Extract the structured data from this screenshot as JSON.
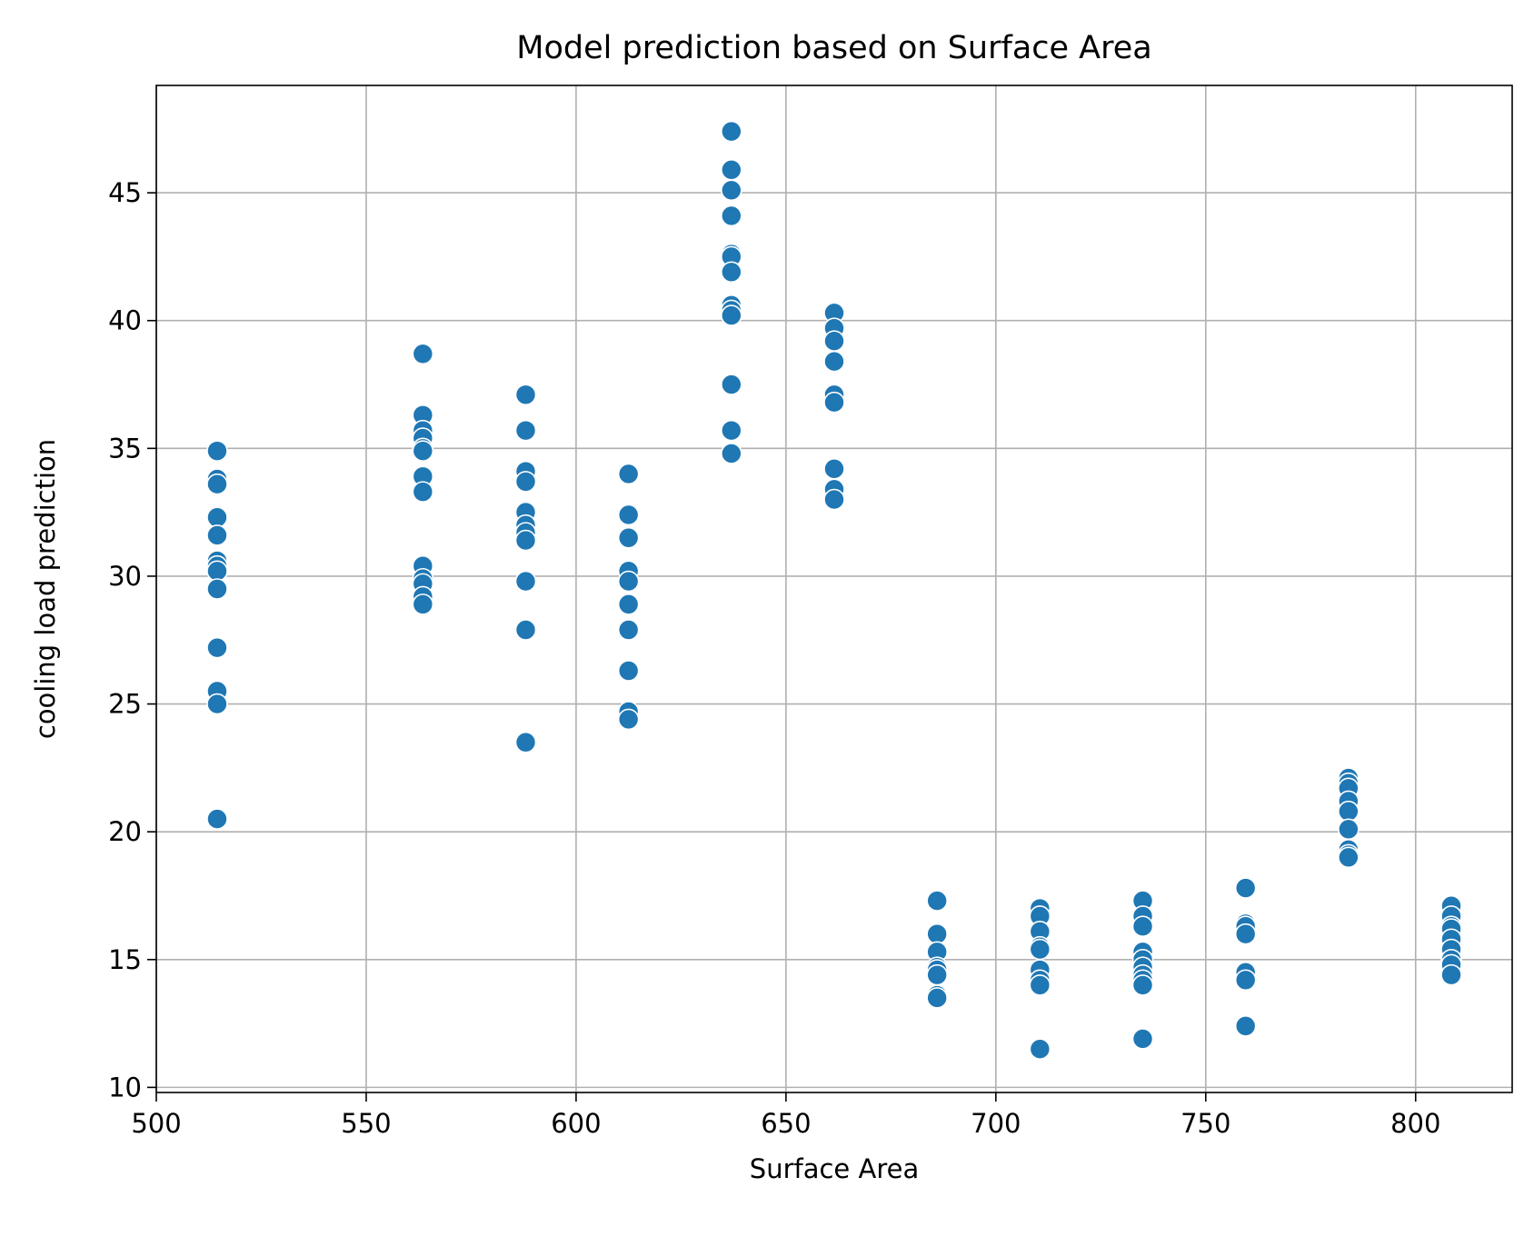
{
  "chart_data": {
    "type": "scatter",
    "title": "Model prediction based on Surface Area",
    "xlabel": "Surface Area",
    "ylabel": "cooling load prediction",
    "xlim": [
      500,
      823
    ],
    "ylim": [
      9.8,
      49.2
    ],
    "xticks": [
      500,
      550,
      600,
      650,
      700,
      750,
      800
    ],
    "yticks": [
      10,
      15,
      20,
      25,
      30,
      35,
      40,
      45
    ],
    "grid": true,
    "legend": "none",
    "marker_color": "#1f77b4",
    "marker_edge_color": "#ffffff",
    "series": [
      {
        "points": [
          [
            514.5,
            34.9
          ],
          [
            514.5,
            33.8
          ],
          [
            514.5,
            33.6
          ],
          [
            514.5,
            32.3
          ],
          [
            514.5,
            31.6
          ],
          [
            514.5,
            30.6
          ],
          [
            514.5,
            30.4
          ],
          [
            514.5,
            30.2
          ],
          [
            514.5,
            29.5
          ],
          [
            514.5,
            27.2
          ],
          [
            514.5,
            25.5
          ],
          [
            514.5,
            25.0
          ],
          [
            514.5,
            20.5
          ],
          [
            563.5,
            38.7
          ],
          [
            563.5,
            36.3
          ],
          [
            563.5,
            35.7
          ],
          [
            563.5,
            35.4
          ],
          [
            563.5,
            35.0
          ],
          [
            563.5,
            34.9
          ],
          [
            563.5,
            33.9
          ],
          [
            563.5,
            33.3
          ],
          [
            563.5,
            30.4
          ],
          [
            563.5,
            29.9
          ],
          [
            563.5,
            29.7
          ],
          [
            563.5,
            29.2
          ],
          [
            563.5,
            28.9
          ],
          [
            588.0,
            37.1
          ],
          [
            588.0,
            35.7
          ],
          [
            588.0,
            34.1
          ],
          [
            588.0,
            33.7
          ],
          [
            588.0,
            32.5
          ],
          [
            588.0,
            32.0
          ],
          [
            588.0,
            31.7
          ],
          [
            588.0,
            31.4
          ],
          [
            588.0,
            29.8
          ],
          [
            588.0,
            27.9
          ],
          [
            588.0,
            23.5
          ],
          [
            612.5,
            34.0
          ],
          [
            612.5,
            32.4
          ],
          [
            612.5,
            31.5
          ],
          [
            612.5,
            30.2
          ],
          [
            612.5,
            29.8
          ],
          [
            612.5,
            28.9
          ],
          [
            612.5,
            27.9
          ],
          [
            612.5,
            26.3
          ],
          [
            612.5,
            24.7
          ],
          [
            612.5,
            24.4
          ],
          [
            637.0,
            47.4
          ],
          [
            637.0,
            45.9
          ],
          [
            637.0,
            45.1
          ],
          [
            637.0,
            44.1
          ],
          [
            637.0,
            42.6
          ],
          [
            637.0,
            42.5
          ],
          [
            637.0,
            41.9
          ],
          [
            637.0,
            40.6
          ],
          [
            637.0,
            40.4
          ],
          [
            637.0,
            40.2
          ],
          [
            637.0,
            37.5
          ],
          [
            637.0,
            35.7
          ],
          [
            637.0,
            34.8
          ],
          [
            661.5,
            40.3
          ],
          [
            661.5,
            39.7
          ],
          [
            661.5,
            39.2
          ],
          [
            661.5,
            38.4
          ],
          [
            661.5,
            37.1
          ],
          [
            661.5,
            36.8
          ],
          [
            661.5,
            34.2
          ],
          [
            661.5,
            33.4
          ],
          [
            661.5,
            33.0
          ],
          [
            686.0,
            17.3
          ],
          [
            686.0,
            16.0
          ],
          [
            686.0,
            15.3
          ],
          [
            686.0,
            14.7
          ],
          [
            686.0,
            14.6
          ],
          [
            686.0,
            14.4
          ],
          [
            686.0,
            13.6
          ],
          [
            686.0,
            13.5
          ],
          [
            710.5,
            17.0
          ],
          [
            710.5,
            16.7
          ],
          [
            710.5,
            16.1
          ],
          [
            710.5,
            15.5
          ],
          [
            710.5,
            15.4
          ],
          [
            710.5,
            14.6
          ],
          [
            710.5,
            14.2
          ],
          [
            710.5,
            14.0
          ],
          [
            710.5,
            11.5
          ],
          [
            735.0,
            17.3
          ],
          [
            735.0,
            16.7
          ],
          [
            735.0,
            16.3
          ],
          [
            735.0,
            15.3
          ],
          [
            735.0,
            15.0
          ],
          [
            735.0,
            14.7
          ],
          [
            735.0,
            14.4
          ],
          [
            735.0,
            14.2
          ],
          [
            735.0,
            14.0
          ],
          [
            735.0,
            11.9
          ],
          [
            759.5,
            17.8
          ],
          [
            759.5,
            16.4
          ],
          [
            759.5,
            16.3
          ],
          [
            759.5,
            16.0
          ],
          [
            759.5,
            14.5
          ],
          [
            759.5,
            14.2
          ],
          [
            759.5,
            12.4
          ],
          [
            784.0,
            22.1
          ],
          [
            784.0,
            21.9
          ],
          [
            784.0,
            21.7
          ],
          [
            784.0,
            21.2
          ],
          [
            784.0,
            20.8
          ],
          [
            784.0,
            20.1
          ],
          [
            784.0,
            19.3
          ],
          [
            784.0,
            19.1
          ],
          [
            784.0,
            19.0
          ],
          [
            808.5,
            17.1
          ],
          [
            808.5,
            16.7
          ],
          [
            808.5,
            16.3
          ],
          [
            808.5,
            16.2
          ],
          [
            808.5,
            15.8
          ],
          [
            808.5,
            15.4
          ],
          [
            808.5,
            15.0
          ],
          [
            808.5,
            14.8
          ],
          [
            808.5,
            14.4
          ]
        ]
      }
    ]
  }
}
